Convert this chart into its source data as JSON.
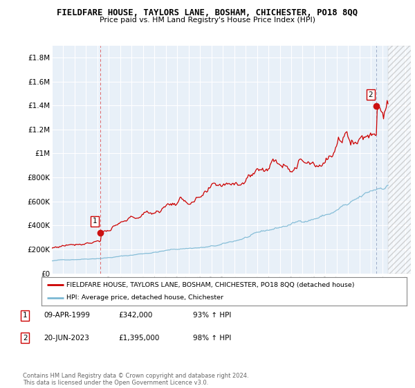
{
  "title": "FIELDFARE HOUSE, TAYLORS LANE, BOSHAM, CHICHESTER, PO18 8QQ",
  "subtitle": "Price paid vs. HM Land Registry's House Price Index (HPI)",
  "ylim": [
    0,
    1900000
  ],
  "yticks": [
    0,
    200000,
    400000,
    600000,
    800000,
    1000000,
    1200000,
    1400000,
    1600000,
    1800000
  ],
  "ytick_labels": [
    "£0",
    "£200K",
    "£400K",
    "£600K",
    "£800K",
    "£1M",
    "£1.2M",
    "£1.4M",
    "£1.6M",
    "£1.8M"
  ],
  "xlim_start": 1995.0,
  "xlim_end": 2026.5,
  "sale1_date": 1999.27,
  "sale1_price": 342000,
  "sale2_date": 2023.47,
  "sale2_price": 1395000,
  "hpi_color": "#7bb8d4",
  "price_color": "#cc0000",
  "sale1_vline_color": "#dd4444",
  "sale2_vline_color": "#8899bb",
  "legend_line1": "FIELDFARE HOUSE, TAYLORS LANE, BOSHAM, CHICHESTER, PO18 8QQ (detached house)",
  "legend_line2": "HPI: Average price, detached house, Chichester",
  "note1_date": "09-APR-1999",
  "note1_price": "£342,000",
  "note1_hpi": "93% ↑ HPI",
  "note2_date": "20-JUN-2023",
  "note2_price": "£1,395,000",
  "note2_hpi": "98% ↑ HPI",
  "footer": "Contains HM Land Registry data © Crown copyright and database right 2024.\nThis data is licensed under the Open Government Licence v3.0.",
  "hatching_start": 2024.5,
  "chart_bg": "#e8f0f8",
  "background_color": "#ffffff",
  "grid_color": "#ffffff"
}
